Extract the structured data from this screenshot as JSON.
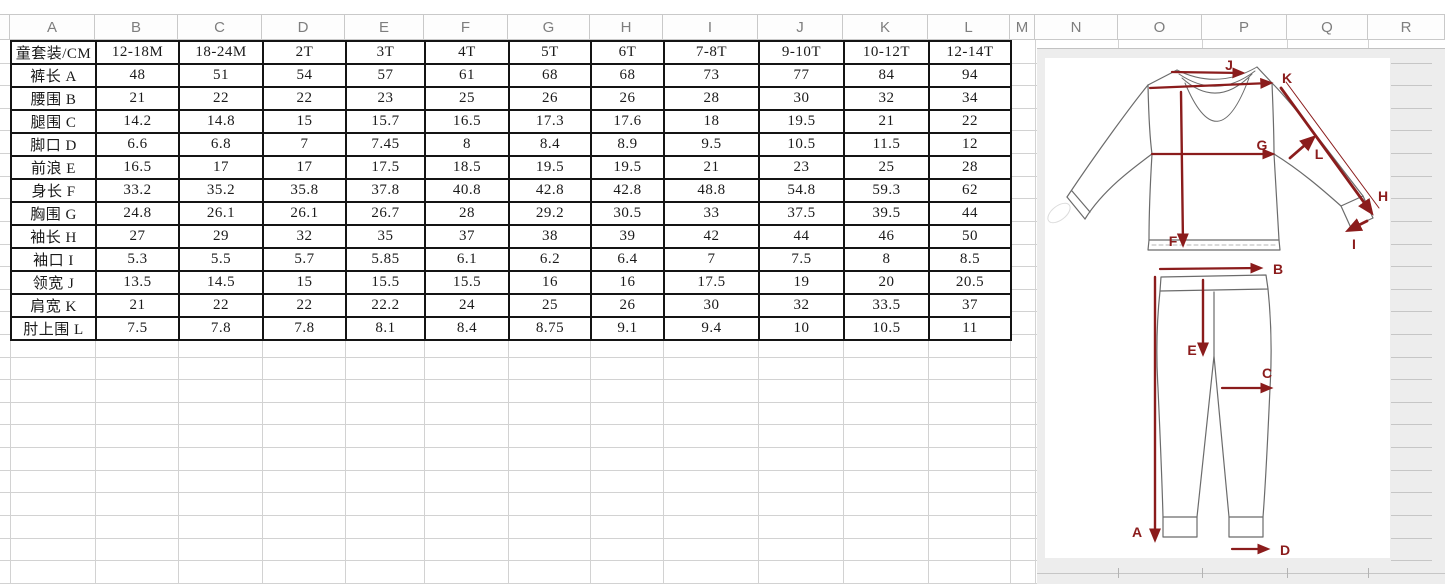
{
  "sheet": {
    "column_headers": [
      "A",
      "B",
      "C",
      "D",
      "E",
      "F",
      "G",
      "H",
      "I",
      "J",
      "K",
      "L",
      "M",
      "N",
      "O",
      "P",
      "Q",
      "R"
    ]
  },
  "table": {
    "unit_header": "童套装/CM",
    "size_columns": [
      "12-18M",
      "18-24M",
      "2T",
      "3T",
      "4T",
      "5T",
      "6T",
      "7-8T",
      "9-10T",
      "10-12T",
      "12-14T"
    ],
    "rows": [
      {
        "label": "裤长 A",
        "values": [
          48,
          51,
          54,
          57,
          61,
          68,
          68,
          73,
          77,
          84,
          94
        ]
      },
      {
        "label": "腰围 B",
        "values": [
          21,
          22,
          22,
          23,
          25,
          26,
          26,
          28,
          30,
          32,
          34
        ]
      },
      {
        "label": "腿围 C",
        "values": [
          14.2,
          14.8,
          15,
          15.7,
          16.5,
          17.3,
          17.6,
          18,
          19.5,
          21,
          22
        ]
      },
      {
        "label": "脚口 D",
        "values": [
          6.6,
          6.8,
          7,
          7.45,
          8,
          8.4,
          8.9,
          9.5,
          10.5,
          11.5,
          12
        ]
      },
      {
        "label": "前浪 E",
        "values": [
          16.5,
          17,
          17,
          17.5,
          18.5,
          19.5,
          19.5,
          21,
          23,
          25,
          28
        ]
      },
      {
        "label": "身长 F",
        "values": [
          33.2,
          35.2,
          35.8,
          37.8,
          40.8,
          42.8,
          42.8,
          48.8,
          54.8,
          59.3,
          62
        ]
      },
      {
        "label": "胸围 G",
        "values": [
          24.8,
          26.1,
          26.1,
          26.7,
          28,
          29.2,
          30.5,
          33,
          37.5,
          39.5,
          44
        ]
      },
      {
        "label": "袖长 H",
        "values": [
          27,
          29,
          32,
          35,
          37,
          38,
          39,
          42,
          44,
          46,
          50
        ]
      },
      {
        "label": "袖口 I",
        "values": [
          5.3,
          5.5,
          5.7,
          5.85,
          6.1,
          6.2,
          6.4,
          7,
          7.5,
          8,
          8.5
        ]
      },
      {
        "label": "领宽 J",
        "values": [
          13.5,
          14.5,
          15,
          15.5,
          15.5,
          16,
          16,
          17.5,
          19,
          20,
          20.5
        ]
      },
      {
        "label": "肩宽 K",
        "values": [
          21,
          22,
          22,
          22.2,
          24,
          25,
          26,
          30,
          32,
          33.5,
          37
        ]
      },
      {
        "label": "肘上围 L",
        "values": [
          7.5,
          7.8,
          7.8,
          8.1,
          8.4,
          8.75,
          9.1,
          9.4,
          10,
          10.5,
          11
        ]
      }
    ]
  },
  "diagram": {
    "labels": {
      "a": "A",
      "b": "B",
      "c": "C",
      "d": "D",
      "e": "E",
      "f": "F",
      "g": "G",
      "h": "H",
      "i": "I",
      "j": "J",
      "k": "K",
      "l": "L"
    }
  },
  "colors": {
    "arrow_red": "#8b1c1c",
    "table_border": "#141414",
    "gridline": "#d2d2d2",
    "header_text": "#7e7e7e",
    "diagram_area_gray": "#ededed"
  }
}
